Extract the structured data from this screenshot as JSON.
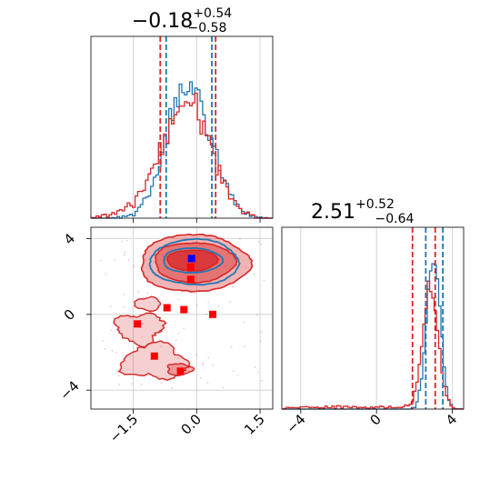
{
  "colors": {
    "blue": "#1f77b4",
    "red": "#d62728",
    "grid": "#cccccc",
    "marker_blue": "#0000ff",
    "marker_red": "#ff0000"
  },
  "chart_data": [
    {
      "type": "histogram",
      "panel": "top-left marginal",
      "title": {
        "main": "−0.18",
        "sup": "+0.54",
        "sub": "−0.58"
      },
      "xlim": [
        -2.5,
        1.8
      ],
      "grid": true,
      "series": [
        {
          "name": "",
          "color": "#1f77b4",
          "quantile_lines": [
            -0.72,
            0.36
          ]
        },
        {
          "name": "",
          "color": "#d62728",
          "quantile_lines": [
            -0.86,
            0.45
          ]
        }
      ]
    },
    {
      "type": "histogram",
      "panel": "bottom-right marginal",
      "title": {
        "main": "2.51",
        "sup": "+0.52",
        "sub": "−0.64"
      },
      "xlim": [
        -5.0,
        4.6
      ],
      "xticks": [
        "−4",
        "0",
        "4"
      ],
      "xtick_values": [
        -4,
        0,
        4
      ],
      "grid": true,
      "series": [
        {
          "name": "",
          "color": "#1f77b4",
          "quantile_lines": [
            2.6,
            3.5
          ]
        },
        {
          "name": "",
          "color": "#d62728",
          "quantile_lines": [
            1.9,
            3.1
          ]
        }
      ]
    },
    {
      "type": "scatter",
      "panel": "bottom-left joint contour",
      "xlim": [
        -2.5,
        1.8
      ],
      "ylim": [
        -5.0,
        4.6
      ],
      "xticks": [
        "−1.5",
        "0.0",
        "1.5"
      ],
      "xtick_values": [
        -1.5,
        0.0,
        1.5
      ],
      "yticks": [
        "4",
        "0",
        "−4"
      ],
      "ytick_values": [
        4,
        0,
        -4
      ],
      "grid": true,
      "markers_blue": [
        {
          "x": -0.12,
          "y": 2.95
        }
      ],
      "markers_red": [
        {
          "x": -0.14,
          "y": 2.5
        },
        {
          "x": -0.14,
          "y": 1.85
        },
        {
          "x": -0.7,
          "y": 0.35
        },
        {
          "x": -0.3,
          "y": 0.25
        },
        {
          "x": 0.38,
          "y": 0.0
        },
        {
          "x": -1.4,
          "y": -0.5
        },
        {
          "x": -1.0,
          "y": -2.2
        },
        {
          "x": -0.38,
          "y": -3.0
        }
      ]
    }
  ]
}
